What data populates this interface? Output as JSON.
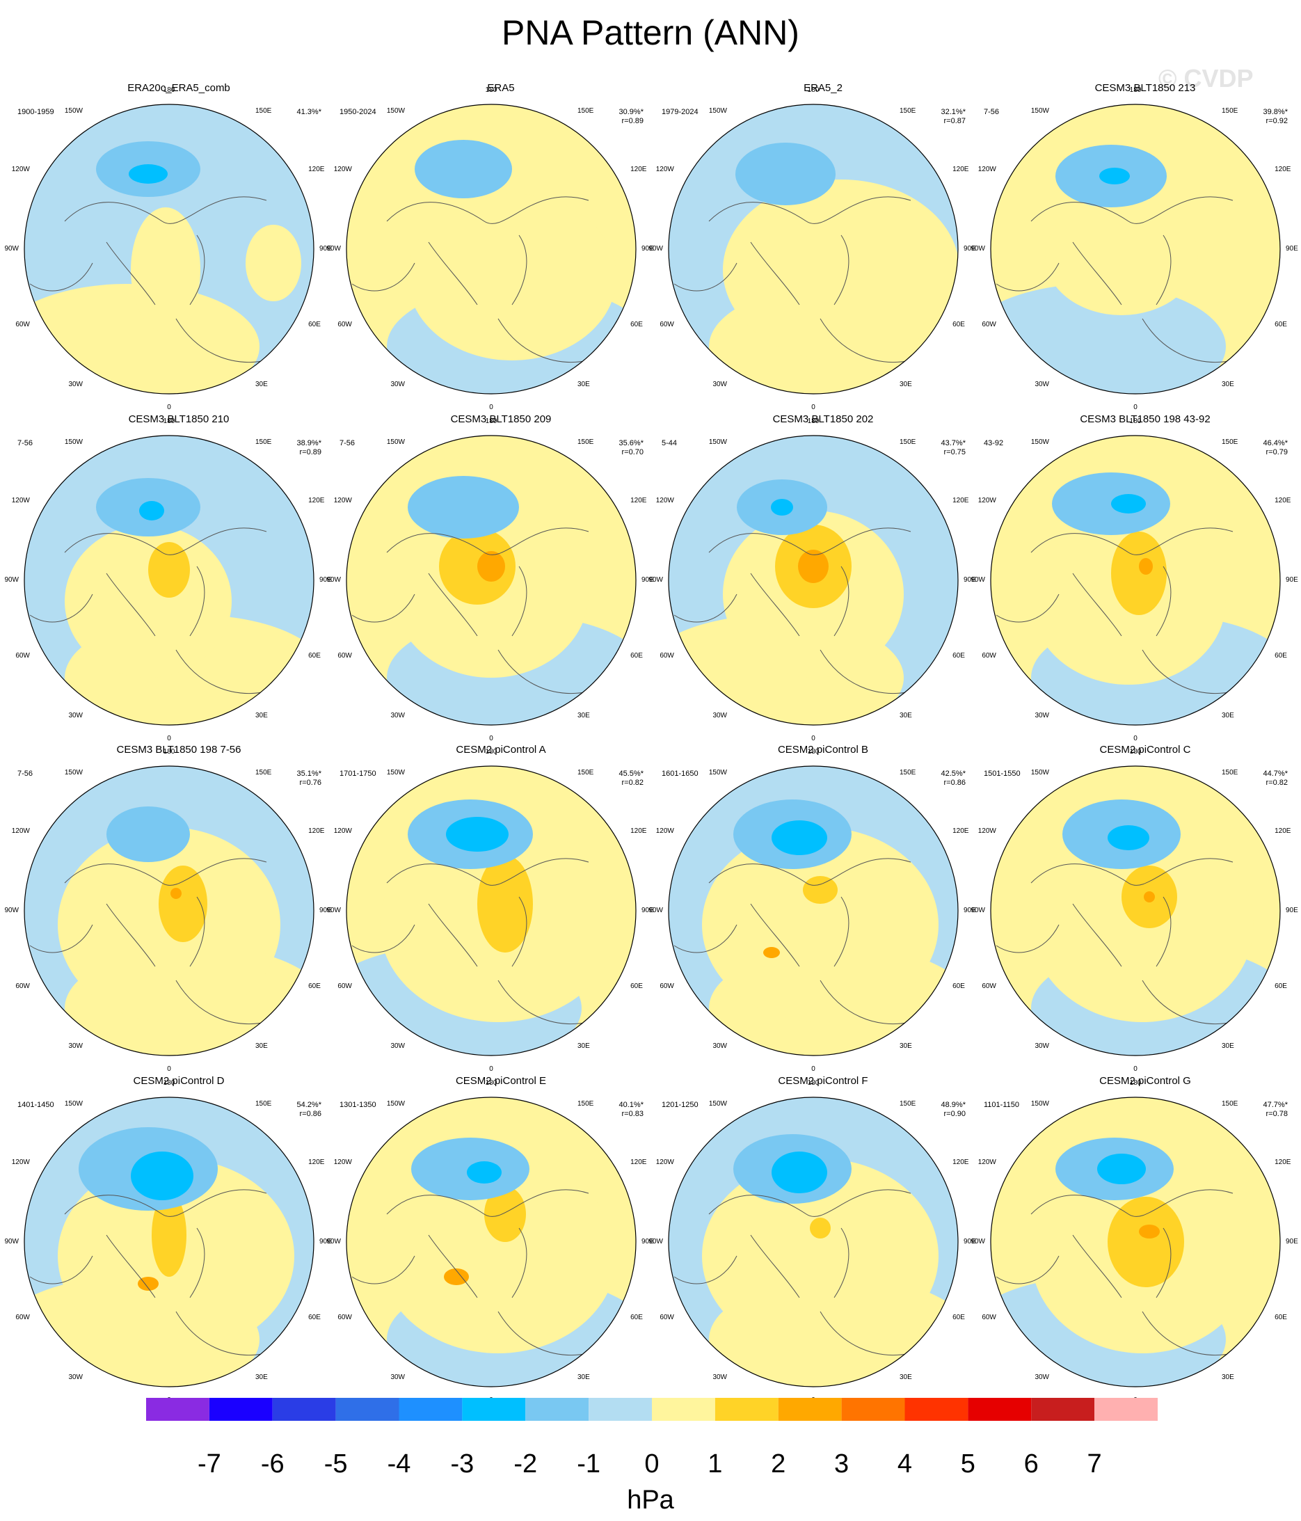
{
  "title": "PNA Pattern (ANN)",
  "watermark": "© CVDP",
  "lon_labels": [
    "180",
    "150E",
    "120E",
    "90E",
    "60E",
    "30E",
    "0",
    "30W",
    "60W",
    "90W",
    "120W",
    "150W"
  ],
  "colors": {
    "ocean_neg1": "#b3ddf2",
    "pos0_1": "#fff59d",
    "pos1_2": "#ffd327",
    "pos2_3": "#ffa800",
    "pos3_4": "#ff7400",
    "neg2": "#79c8f2",
    "neg3": "#00bfff",
    "coast": "#555555"
  },
  "panels": [
    {
      "title": "ERA20c_ERA5_comb",
      "period": "1900-1959",
      "pct": "41.3%*",
      "r": ""
    },
    {
      "title": "ERA5",
      "period": "1950-2024",
      "pct": "30.9%*",
      "r": "r=0.89"
    },
    {
      "title": "ERA5_2",
      "period": "1979-2024",
      "pct": "32.1%*",
      "r": "r=0.87"
    },
    {
      "title": "CESM3 BLT1850 213",
      "period": "7-56",
      "pct": "39.8%*",
      "r": "r=0.92"
    },
    {
      "title": "CESM3 BLT1850 210",
      "period": "7-56",
      "pct": "38.9%*",
      "r": "r=0.89"
    },
    {
      "title": "CESM3 BLT1850 209",
      "period": "7-56",
      "pct": "35.6%*",
      "r": "r=0.70"
    },
    {
      "title": "CESM3 BLT1850 202",
      "period": "5-44",
      "pct": "43.7%*",
      "r": "r=0.75"
    },
    {
      "title": "CESM3 BLT1850 198 43-92",
      "period": "43-92",
      "pct": "46.4%*",
      "r": "r=0.79"
    },
    {
      "title": "CESM3 BLT1850 198 7-56",
      "period": "7-56",
      "pct": "35.1%*",
      "r": "r=0.76"
    },
    {
      "title": "CESM2 piControl A",
      "period": "1701-1750",
      "pct": "45.5%*",
      "r": "r=0.82"
    },
    {
      "title": "CESM2 piControl B",
      "period": "1601-1650",
      "pct": "42.5%*",
      "r": "r=0.86"
    },
    {
      "title": "CESM2 piControl C",
      "period": "1501-1550",
      "pct": "44.7%*",
      "r": "r=0.82"
    },
    {
      "title": "CESM2 piControl D",
      "period": "1401-1450",
      "pct": "54.2%*",
      "r": "r=0.86"
    },
    {
      "title": "CESM2 piControl E",
      "period": "1301-1350",
      "pct": "40.1%*",
      "r": "r=0.83"
    },
    {
      "title": "CESM2 piControl F",
      "period": "1201-1250",
      "pct": "48.9%*",
      "r": "r=0.90"
    },
    {
      "title": "CESM2 piControl G",
      "period": "1101-1150",
      "pct": "47.7%*",
      "r": "r=0.78"
    }
  ],
  "colorbar": {
    "ticks": [
      "-7",
      "-6",
      "-5",
      "-4",
      "-3",
      "-2",
      "-1",
      "0",
      "1",
      "2",
      "3",
      "4",
      "5",
      "6",
      "7"
    ],
    "colors": [
      "#8a2be2",
      "#1a00ff",
      "#2a3de6",
      "#2f6fe8",
      "#1e90ff",
      "#00bfff",
      "#79c8f2",
      "#b3ddf2",
      "#fff59d",
      "#ffd327",
      "#ffa800",
      "#ff7400",
      "#ff3300",
      "#e60000",
      "#c81e1e",
      "#ffb0b0"
    ],
    "units": "hPa"
  }
}
